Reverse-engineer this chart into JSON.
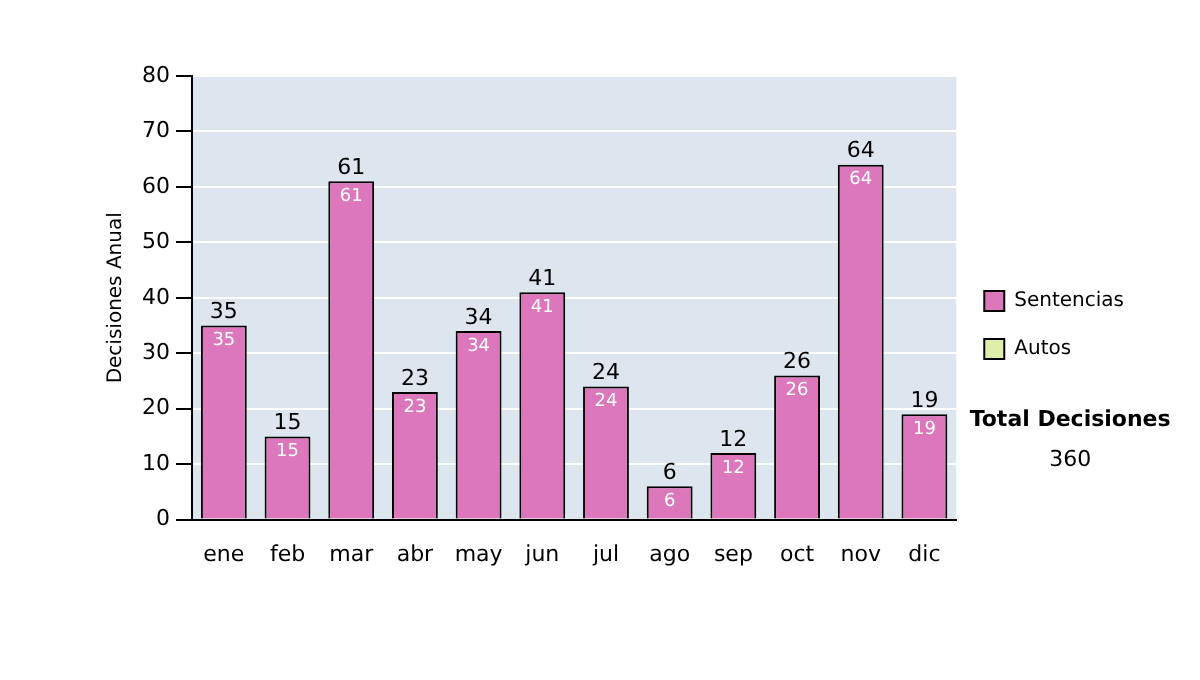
{
  "chart_data": {
    "type": "bar",
    "ylabel": "Decisiones Anual",
    "categories": [
      "ene",
      "feb",
      "mar",
      "abr",
      "may",
      "jun",
      "jul",
      "ago",
      "sep",
      "oct",
      "nov",
      "dic"
    ],
    "series": [
      {
        "name": "Sentencias",
        "color": "#dd77bb",
        "values": [
          35,
          15,
          61,
          23,
          34,
          41,
          24,
          6,
          12,
          26,
          64,
          19
        ],
        "value_labels": [
          "35",
          "15",
          "61",
          "23",
          "34",
          "41",
          "24",
          "6",
          "12",
          "26",
          "64",
          "19"
        ]
      },
      {
        "name": "Autos",
        "color": "#ddeeaa",
        "values": [
          0,
          0,
          0,
          0,
          0,
          0,
          0,
          0,
          0,
          0,
          0,
          0
        ]
      }
    ],
    "stacked": true,
    "totals": [
      "35",
      "15",
      "61",
      "23",
      "34",
      "41",
      "24",
      "6",
      "12",
      "26",
      "64",
      "19"
    ],
    "ylim": [
      0,
      80
    ],
    "yticks": [
      0,
      10,
      20,
      30,
      40,
      50,
      60,
      70,
      80
    ],
    "grid": "y",
    "legend": "right",
    "annotations": [
      "Total Decisiones",
      "360"
    ]
  }
}
